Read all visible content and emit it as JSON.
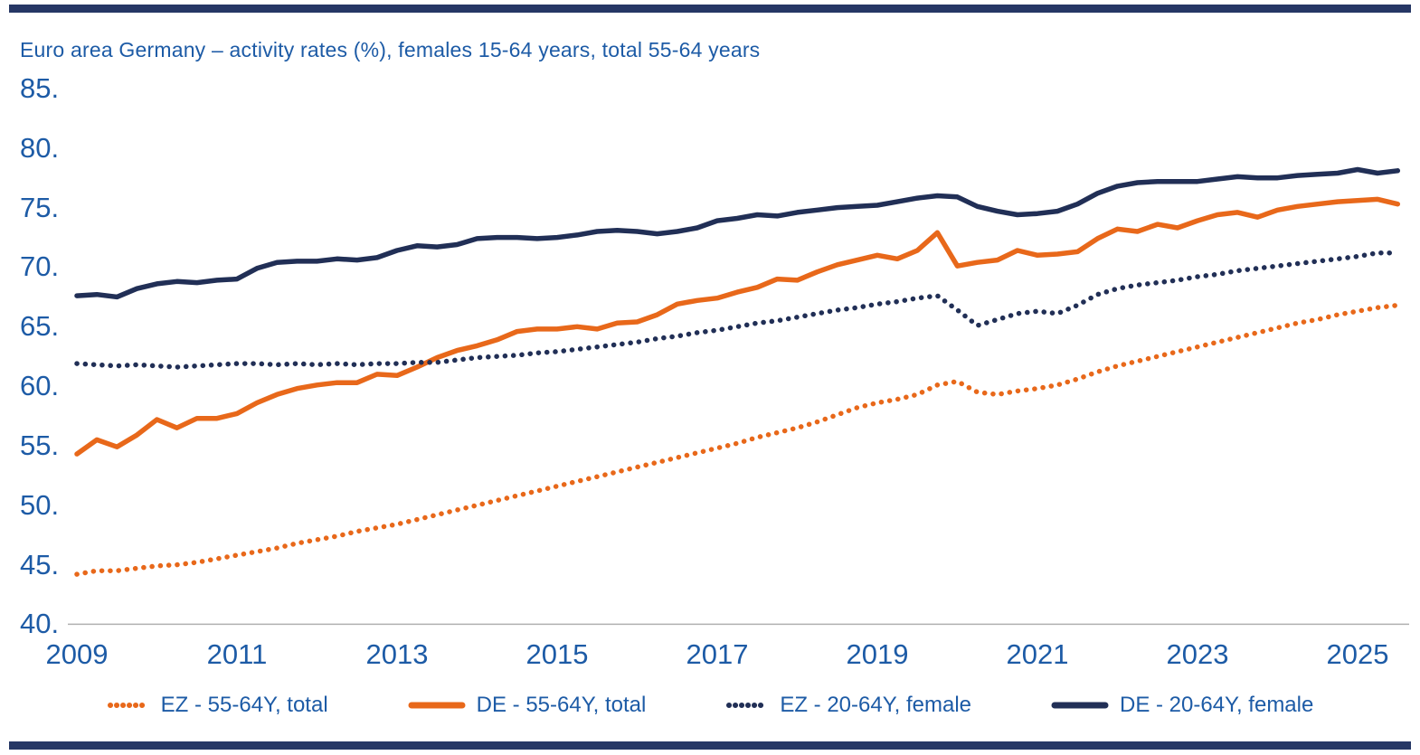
{
  "page": {
    "bar_color": "#263765",
    "text_color": "#1d5ba6",
    "background": "#ffffff"
  },
  "chart_data": {
    "type": "line",
    "title": "Euro area Germany – activity rates (%), females 15-64 years, total 55-64 years",
    "xlabel": "",
    "ylabel": "",
    "ylim": [
      40,
      85
    ],
    "y_step": 5,
    "grid": false,
    "axis_color": "#b0b0b0",
    "legend_position": "bottom",
    "y_tick_labels": [
      "85.",
      "80.",
      "75.",
      "70.",
      "65.",
      "60.",
      "55.",
      "50.",
      "45.",
      "40."
    ],
    "x_tick_labels": [
      "2009",
      "2011",
      "2013",
      "2015",
      "2017",
      "2019",
      "2021",
      "2023",
      "2025"
    ],
    "x_start": "2009Q1",
    "x_end": "2025Q3",
    "x_frequency": "quarterly",
    "series": [
      {
        "name": "EZ - 55-64Y, total",
        "style": "dotted",
        "color": "#e8681a",
        "values": [
          44.2,
          44.5,
          44.5,
          44.7,
          44.9,
          45.0,
          45.2,
          45.5,
          45.8,
          46.1,
          46.4,
          46.8,
          47.1,
          47.4,
          47.8,
          48.1,
          48.4,
          48.8,
          49.2,
          49.6,
          50.0,
          50.4,
          50.8,
          51.2,
          51.6,
          52.0,
          52.4,
          52.8,
          53.2,
          53.6,
          54.0,
          54.4,
          54.8,
          55.2,
          55.7,
          56.1,
          56.5,
          57.0,
          57.6,
          58.2,
          58.6,
          58.9,
          59.3,
          60.1,
          60.4,
          59.5,
          59.3,
          59.6,
          59.8,
          60.1,
          60.6,
          61.2,
          61.7,
          62.1,
          62.5,
          62.9,
          63.3,
          63.7,
          64.1,
          64.5,
          64.9,
          65.3,
          65.6,
          66.0,
          66.3,
          66.6,
          66.8
        ]
      },
      {
        "name": "DE - 55-64Y, total",
        "style": "solid",
        "color": "#e8681a",
        "values": [
          54.3,
          55.5,
          54.9,
          55.9,
          57.2,
          56.5,
          57.3,
          57.3,
          57.7,
          58.6,
          59.3,
          59.8,
          60.1,
          60.3,
          60.3,
          61.0,
          60.9,
          61.6,
          62.4,
          63.0,
          63.4,
          63.9,
          64.6,
          64.8,
          64.8,
          65.0,
          64.8,
          65.3,
          65.4,
          66.0,
          66.9,
          67.2,
          67.4,
          67.9,
          68.3,
          69.0,
          68.9,
          69.6,
          70.2,
          70.6,
          71.0,
          70.7,
          71.4,
          72.9,
          70.1,
          70.4,
          70.6,
          71.4,
          71.0,
          71.1,
          71.3,
          72.4,
          73.2,
          73.0,
          73.6,
          73.3,
          73.9,
          74.4,
          74.6,
          74.2,
          74.8,
          75.1,
          75.3,
          75.5,
          75.6,
          75.7,
          75.3
        ]
      },
      {
        "name": "EZ - 20-64Y, female",
        "style": "dotted",
        "color": "#212f56",
        "values": [
          61.9,
          61.8,
          61.7,
          61.8,
          61.7,
          61.6,
          61.7,
          61.8,
          61.9,
          61.9,
          61.8,
          61.9,
          61.8,
          61.9,
          61.8,
          61.9,
          61.9,
          62.0,
          62.0,
          62.2,
          62.4,
          62.5,
          62.6,
          62.8,
          62.9,
          63.1,
          63.3,
          63.5,
          63.7,
          64.0,
          64.2,
          64.5,
          64.7,
          65.0,
          65.3,
          65.5,
          65.8,
          66.1,
          66.4,
          66.6,
          66.9,
          67.1,
          67.4,
          67.6,
          66.4,
          65.1,
          65.6,
          66.1,
          66.3,
          66.1,
          66.8,
          67.7,
          68.2,
          68.5,
          68.7,
          68.9,
          69.2,
          69.4,
          69.7,
          69.9,
          70.1,
          70.3,
          70.5,
          70.7,
          70.9,
          71.2,
          71.2
        ]
      },
      {
        "name": "DE - 20-64Y, female",
        "style": "solid",
        "color": "#212f56",
        "values": [
          67.6,
          67.7,
          67.5,
          68.2,
          68.6,
          68.8,
          68.7,
          68.9,
          69.0,
          69.9,
          70.4,
          70.5,
          70.5,
          70.7,
          70.6,
          70.8,
          71.4,
          71.8,
          71.7,
          71.9,
          72.4,
          72.5,
          72.5,
          72.4,
          72.5,
          72.7,
          73.0,
          73.1,
          73.0,
          72.8,
          73.0,
          73.3,
          73.9,
          74.1,
          74.4,
          74.3,
          74.6,
          74.8,
          75.0,
          75.1,
          75.2,
          75.5,
          75.8,
          76.0,
          75.9,
          75.1,
          74.7,
          74.4,
          74.5,
          74.7,
          75.3,
          76.2,
          76.8,
          77.1,
          77.2,
          77.2,
          77.2,
          77.4,
          77.6,
          77.5,
          77.5,
          77.7,
          77.8,
          77.9,
          78.2,
          77.9,
          78.1
        ]
      }
    ]
  }
}
